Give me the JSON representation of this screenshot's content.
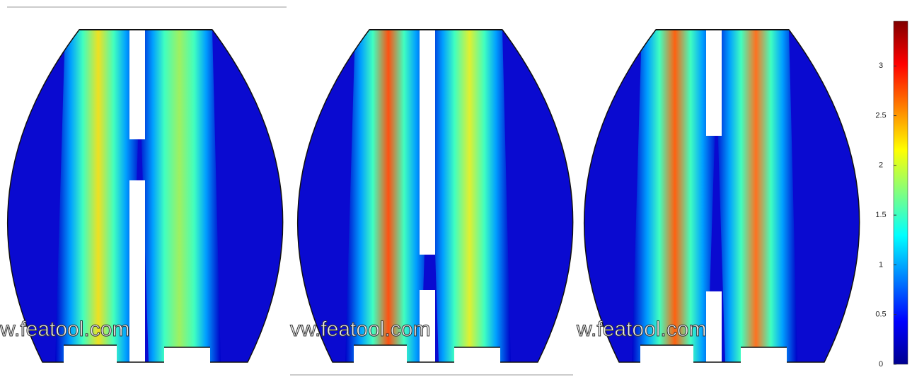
{
  "panels": [
    {
      "watermark": "w.featool.com"
    },
    {
      "watermark": "vw.featool.com"
    },
    {
      "watermark": "w.featool.com"
    }
  ],
  "colorbar": {
    "lim": [
      0,
      3.45
    ],
    "ticks": [
      0,
      0.5,
      1,
      1.5,
      2,
      2.5,
      3
    ]
  }
}
